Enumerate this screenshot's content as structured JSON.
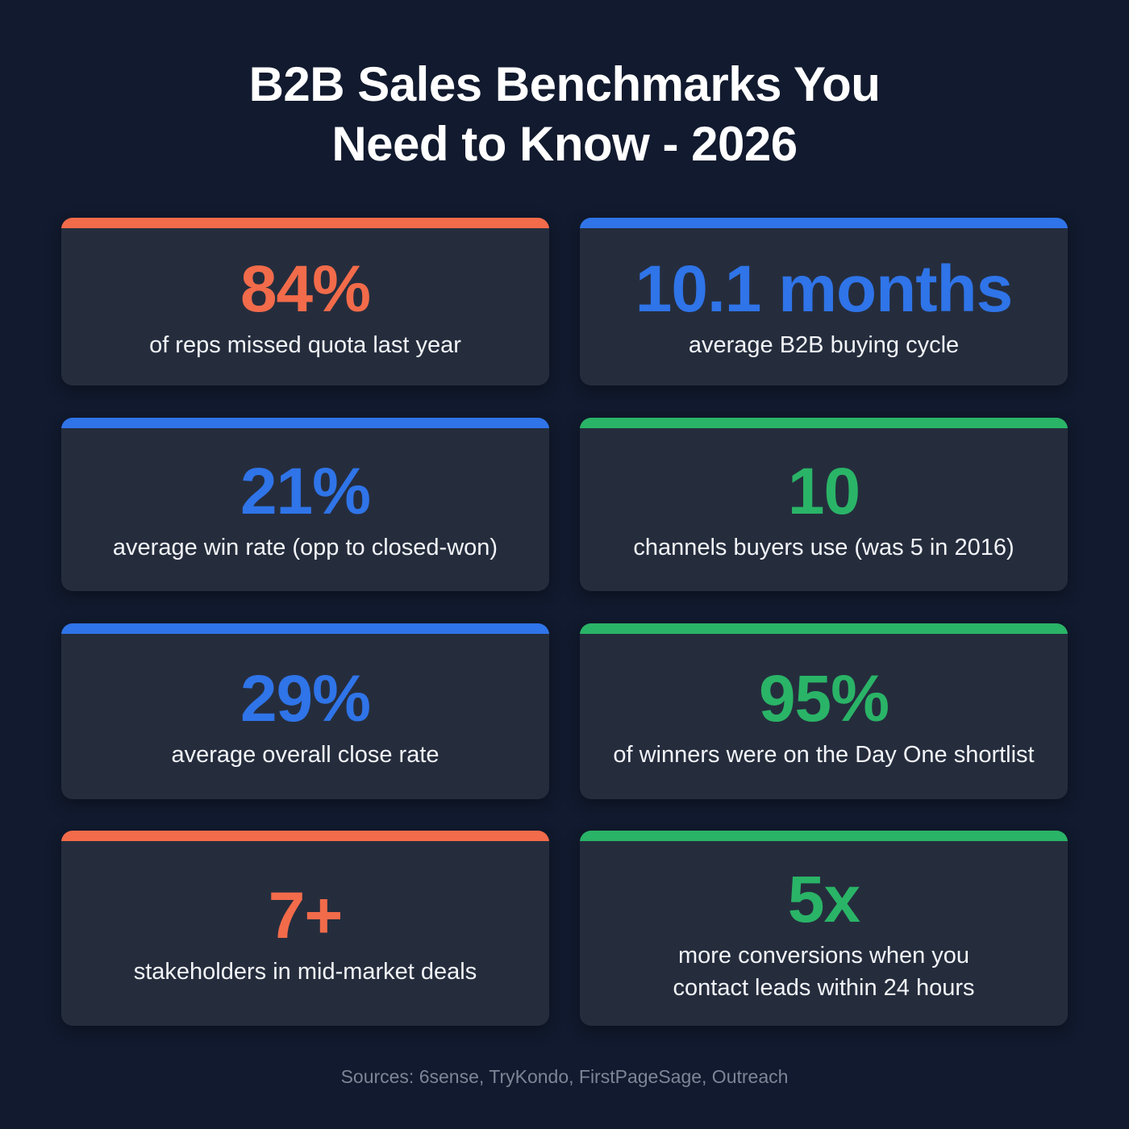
{
  "title": {
    "line1": "B2B Sales Benchmarks You",
    "line2": "Need to Know - 2026"
  },
  "colors": {
    "orange": "#f26b4a",
    "blue": "#2f74e8",
    "green": "#2ab467",
    "background": "#111a2e",
    "card": "#252d3d"
  },
  "cards": [
    {
      "value": "84%",
      "desc1": "of reps missed quota last year",
      "desc2": "",
      "accent": "#f26b4a"
    },
    {
      "value": "10.1 months",
      "desc1": "average B2B buying cycle",
      "desc2": "",
      "accent": "#2f74e8"
    },
    {
      "value": "21%",
      "desc1": "average win rate (opp to closed-won)",
      "desc2": "",
      "accent": "#2f74e8"
    },
    {
      "value": "10",
      "desc1": "channels buyers use (was 5 in 2016)",
      "desc2": "",
      "accent": "#2ab467"
    },
    {
      "value": "29%",
      "desc1": "average overall close rate",
      "desc2": "",
      "accent": "#2f74e8"
    },
    {
      "value": "95%",
      "desc1": "of winners were on the Day One shortlist",
      "desc2": "",
      "accent": "#2ab467"
    },
    {
      "value": "7+",
      "desc1": "stakeholders in mid-market deals",
      "desc2": "",
      "accent": "#f26b4a"
    },
    {
      "value": "5x",
      "desc1": "more conversions when you",
      "desc2": "contact leads within 24 hours",
      "accent": "#2ab467"
    }
  ],
  "sources": "Sources: 6sense, TryKondo, FirstPageSage, Outreach"
}
